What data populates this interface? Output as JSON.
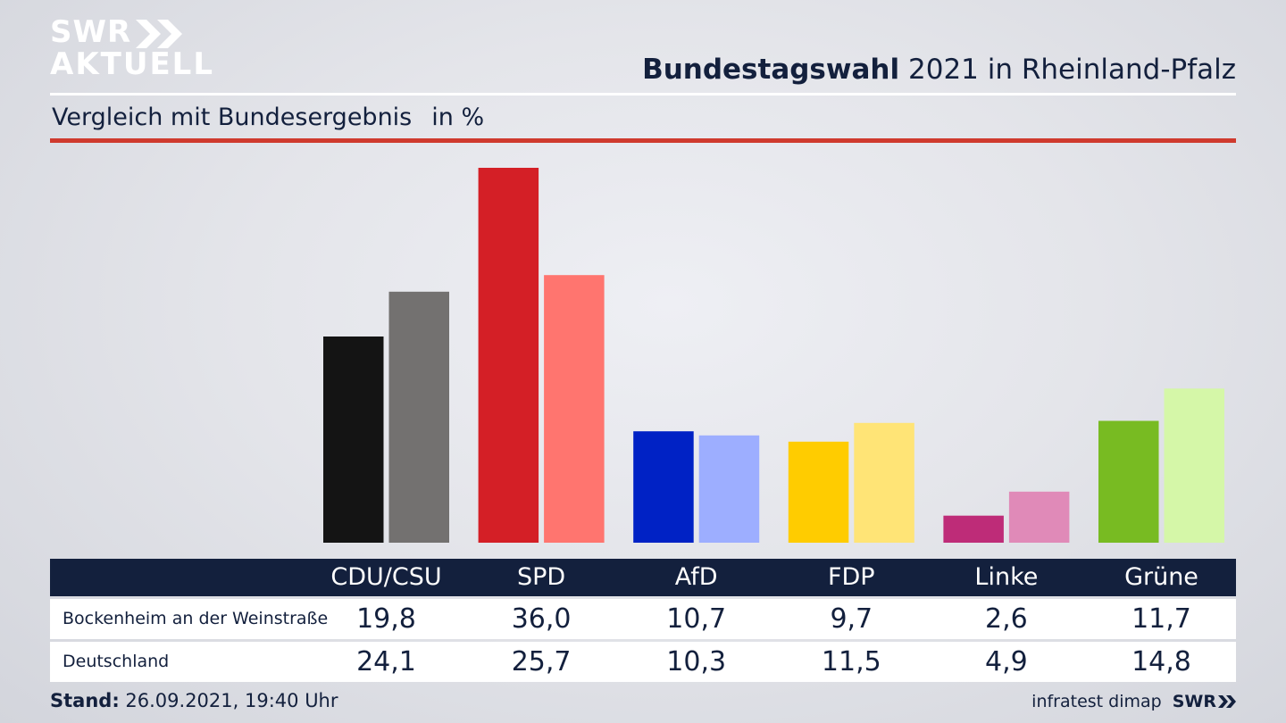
{
  "branding": {
    "logo_line1": "SWR",
    "logo_line2": "AKTUELL",
    "footer_brand": "SWR",
    "source": "infratest dimap"
  },
  "header": {
    "title_bold": "Bundestagswahl",
    "title_rest": "2021 in Rheinland-Pfalz",
    "subtitle": "Vergleich mit Bundesergebnis",
    "unit": "in %"
  },
  "footer": {
    "stand_label": "Stand:",
    "stand_value": "26.09.2021, 19:40 Uhr"
  },
  "chart_data": {
    "type": "bar",
    "categories": [
      "CDU/CSU",
      "SPD",
      "AfD",
      "FDP",
      "Linke",
      "Grüne"
    ],
    "series": [
      {
        "name": "Bockenheim an der Weinstraße",
        "values": [
          19.8,
          36.0,
          10.7,
          9.7,
          2.6,
          11.7
        ]
      },
      {
        "name": "Deutschland",
        "values": [
          24.1,
          25.7,
          10.3,
          11.5,
          4.9,
          14.8
        ]
      }
    ],
    "value_labels": [
      [
        "19,8",
        "36,0",
        "10,7",
        "9,7",
        "2,6",
        "11,7"
      ],
      [
        "24,1",
        "25,7",
        "10,3",
        "11,5",
        "4,9",
        "14,8"
      ]
    ],
    "colors": {
      "local": [
        "#141414",
        "#d41f26",
        "#0022c5",
        "#ffcc00",
        "#be2c78",
        "#78bb22"
      ],
      "national": [
        "#737170",
        "#ff756f",
        "#9daeff",
        "#ffe476",
        "#e08ab8",
        "#d5f7a8"
      ]
    },
    "ylim": [
      0,
      36.0
    ],
    "grid": false,
    "legend": "table below chart"
  }
}
